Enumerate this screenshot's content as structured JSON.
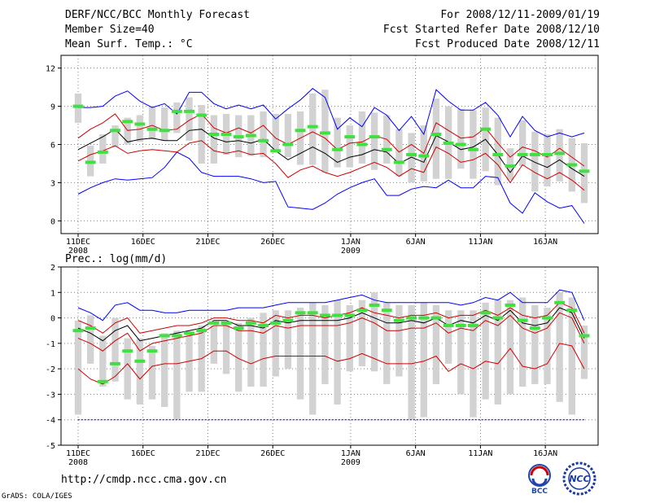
{
  "header": {
    "title": "DERF/NCC/BCC Monthly Forecast",
    "member_size": "Member Size=40",
    "variable": "Mean Surf. Temp.: °C",
    "period": "For 2008/12/11-2009/01/19",
    "started": "Fcst Started Refer Date 2008/12/10",
    "produced": "Fcst Produced Date 2008/12/11"
  },
  "footer": {
    "url": "http://cmdp.ncc.cma.gov.cn",
    "grads": "GrADS: COLA/IGES",
    "logo_bcc": "BCC",
    "logo_ncc": "NCC"
  },
  "colors": {
    "envelope": "#0000ff",
    "spread": "#d00000",
    "mean": "#000000",
    "box": "#d2d2d2",
    "median": "#40e040",
    "grid": "#808080"
  },
  "chart_data": [
    {
      "type": "box-line",
      "title": "Mean Surf. Temp.: °C",
      "days": 39,
      "ylim": [
        -1,
        13
      ],
      "yticks": [
        0,
        3,
        6,
        9,
        12
      ],
      "xticks": [
        {
          "day": 0,
          "label": "11DEC",
          "sub": "2008"
        },
        {
          "day": 5,
          "label": "16DEC",
          "sub": ""
        },
        {
          "day": 10,
          "label": "21DEC",
          "sub": ""
        },
        {
          "day": 15,
          "label": "26DEC",
          "sub": ""
        },
        {
          "day": 21,
          "label": "1JAN",
          "sub": "2009"
        },
        {
          "day": 26,
          "label": "6JAN",
          "sub": ""
        },
        {
          "day": 31,
          "label": "11JAN",
          "sub": ""
        },
        {
          "day": 36,
          "label": "16JAN",
          "sub": ""
        }
      ],
      "series": [
        {
          "name": "max",
          "color": "blue",
          "values": [
            8.9,
            8.9,
            9.0,
            9.8,
            10.2,
            9.4,
            8.9,
            9.2,
            8.4,
            10.1,
            10.1,
            9.2,
            8.8,
            9.1,
            8.8,
            9.1,
            8.0,
            8.8,
            9.5,
            10.4,
            9.7,
            7.2,
            8.1,
            7.4,
            8.9,
            8.3,
            7.1,
            8.2,
            6.8,
            10.3,
            9.4,
            8.7,
            8.7,
            9.3,
            8.3,
            6.6,
            8.2,
            7.1,
            6.6,
            6.9,
            6.6,
            6.9
          ]
        },
        {
          "name": "p75",
          "color": "red",
          "values": [
            6.5,
            7.2,
            7.7,
            8.4,
            7.1,
            7.2,
            7.5,
            7.1,
            7.2,
            7.9,
            8.4,
            7.3,
            6.9,
            7.3,
            6.9,
            7.5,
            6.5,
            6.0,
            6.5,
            7.0,
            6.5,
            5.6,
            6.1,
            6.2,
            6.7,
            6.4,
            5.4,
            6.0,
            5.3,
            7.7,
            7.1,
            6.5,
            6.6,
            7.3,
            6.1,
            5.0,
            5.8,
            5.5,
            5.0,
            5.7,
            5.0,
            4.3
          ]
        },
        {
          "name": "mean",
          "color": "black",
          "values": [
            5.6,
            6.1,
            6.6,
            7.2,
            6.2,
            6.4,
            6.5,
            6.3,
            6.3,
            7.1,
            7.2,
            6.5,
            6.2,
            6.3,
            6.1,
            6.4,
            5.5,
            4.8,
            5.3,
            5.8,
            5.3,
            4.6,
            5.0,
            5.2,
            5.6,
            5.4,
            4.5,
            5.0,
            4.6,
            6.7,
            6.2,
            5.6,
            5.8,
            6.4,
            5.2,
            3.8,
            5.1,
            4.6,
            4.2,
            4.8,
            4.1,
            3.5
          ]
        },
        {
          "name": "p25",
          "color": "red",
          "values": [
            4.7,
            5.2,
            5.5,
            5.9,
            5.3,
            5.5,
            5.6,
            5.5,
            5.4,
            6.1,
            6.3,
            5.5,
            5.3,
            5.5,
            5.2,
            5.3,
            4.5,
            3.4,
            4.0,
            4.3,
            3.8,
            3.5,
            3.8,
            4.2,
            4.6,
            4.2,
            3.5,
            4.1,
            3.8,
            5.8,
            5.3,
            4.6,
            4.8,
            5.3,
            4.4,
            3.0,
            4.4,
            3.8,
            3.3,
            3.8,
            3.2,
            2.4
          ]
        },
        {
          "name": "min",
          "color": "blue",
          "values": [
            2.1,
            2.6,
            3.0,
            3.3,
            3.2,
            3.3,
            3.4,
            4.2,
            5.4,
            4.9,
            3.8,
            3.5,
            3.5,
            3.5,
            3.3,
            3.0,
            3.1,
            1.1,
            1.0,
            0.9,
            1.4,
            2.1,
            2.6,
            3.0,
            3.3,
            2.0,
            2.0,
            2.5,
            2.7,
            2.6,
            3.2,
            2.6,
            2.6,
            3.5,
            3.4,
            1.4,
            0.6,
            2.2,
            1.5,
            1.0,
            1.2,
            -0.2
          ]
        }
      ],
      "boxes_lo": [
        7.7,
        3.5,
        4.5,
        5.8,
        6.0,
        6.2,
        6.4,
        6.3,
        6.9,
        6.3,
        4.5,
        4.5,
        5.2,
        5.0,
        5.1,
        5.0,
        5.6,
        5.0,
        4.4,
        4.4,
        3.8,
        4.2,
        4.2,
        4.5,
        4.0,
        4.5,
        3.5,
        3.0,
        3.1,
        3.3,
        3.3,
        4.1,
        3.3,
        3.9,
        2.8,
        3.2,
        4.3,
        2.3,
        2.7,
        3.1,
        2.3,
        1.4
      ],
      "boxes_hi": [
        10.0,
        5.9,
        6.8,
        7.5,
        8.1,
        8.3,
        9.0,
        8.9,
        9.3,
        9.7,
        9.1,
        8.3,
        8.4,
        8.3,
        8.3,
        8.6,
        8.4,
        8.4,
        8.6,
        10.0,
        10.3,
        8.1,
        7.5,
        8.6,
        8.5,
        8.3,
        7.2,
        6.9,
        7.5,
        9.6,
        9.0,
        8.8,
        8.7,
        8.9,
        8.1,
        5.7,
        7.9,
        7.0,
        6.8,
        7.2,
        6.5,
        6.1
      ],
      "medians": [
        9.0,
        4.6,
        5.4,
        7.1,
        7.8,
        7.6,
        7.2,
        7.1,
        8.6,
        8.6,
        8.3,
        6.8,
        6.8,
        6.6,
        6.7,
        6.3,
        5.5,
        6.0,
        7.1,
        7.4,
        6.9,
        5.6,
        6.6,
        6.0,
        6.6,
        5.6,
        4.6,
        5.2,
        5.1,
        6.8,
        6.1,
        6.0,
        5.6,
        7.2,
        5.2,
        4.3,
        5.2,
        5.2,
        5.2,
        5.3,
        4.4,
        3.9
      ]
    },
    {
      "type": "box-line",
      "title": "Prec.: log(mm/d)",
      "days": 39,
      "ylim": [
        -5,
        2
      ],
      "yticks": [
        -5,
        -4,
        -3,
        -2,
        -1,
        0,
        1,
        2
      ],
      "xticks": [
        {
          "day": 0,
          "label": "11DEC",
          "sub": "2008"
        },
        {
          "day": 5,
          "label": "16DEC",
          "sub": ""
        },
        {
          "day": 10,
          "label": "21DEC",
          "sub": ""
        },
        {
          "day": 15,
          "label": "26DEC",
          "sub": ""
        },
        {
          "day": 21,
          "label": "1JAN",
          "sub": "2009"
        },
        {
          "day": 26,
          "label": "6JAN",
          "sub": ""
        },
        {
          "day": 31,
          "label": "11JAN",
          "sub": ""
        },
        {
          "day": 36,
          "label": "16JAN",
          "sub": ""
        }
      ],
      "series": [
        {
          "name": "max",
          "color": "blue",
          "values": [
            0.4,
            0.2,
            -0.1,
            0.5,
            0.6,
            0.3,
            0.3,
            0.2,
            0.2,
            0.3,
            0.3,
            0.3,
            0.3,
            0.4,
            0.4,
            0.4,
            0.5,
            0.6,
            0.6,
            0.6,
            0.6,
            0.7,
            0.8,
            0.9,
            0.7,
            0.6,
            0.6,
            0.6,
            0.6,
            0.6,
            0.6,
            0.5,
            0.6,
            0.8,
            0.7,
            1.0,
            0.6,
            0.6,
            0.6,
            1.1,
            1.0,
            -0.1
          ]
        },
        {
          "name": "p75",
          "color": "red",
          "values": [
            -0.1,
            -0.3,
            -0.6,
            -0.2,
            0.0,
            -0.6,
            -0.5,
            -0.4,
            -0.3,
            -0.3,
            -0.2,
            0.0,
            0.0,
            -0.1,
            -0.1,
            -0.2,
            0.1,
            0.0,
            0.1,
            0.1,
            0.0,
            0.1,
            0.2,
            0.4,
            0.2,
            0.1,
            0.0,
            0.1,
            0.1,
            0.2,
            0.0,
            0.1,
            0.1,
            0.3,
            0.1,
            0.4,
            0.1,
            0.0,
            0.1,
            0.6,
            0.4,
            -0.6
          ]
        },
        {
          "name": "mean",
          "color": "black",
          "values": [
            -0.4,
            -0.6,
            -0.9,
            -0.5,
            -0.3,
            -0.9,
            -0.8,
            -0.7,
            -0.6,
            -0.5,
            -0.4,
            -0.1,
            -0.1,
            -0.3,
            -0.3,
            -0.4,
            -0.1,
            -0.2,
            -0.1,
            -0.1,
            -0.1,
            -0.1,
            0.0,
            0.2,
            0.0,
            -0.2,
            -0.2,
            -0.1,
            -0.2,
            0.0,
            -0.3,
            -0.1,
            -0.2,
            0.1,
            -0.1,
            0.3,
            -0.2,
            -0.3,
            -0.2,
            0.4,
            0.2,
            -0.8
          ]
        },
        {
          "name": "p25",
          "color": "red",
          "values": [
            -0.8,
            -1.0,
            -1.3,
            -0.9,
            -0.6,
            -1.3,
            -1.0,
            -0.9,
            -0.8,
            -0.7,
            -0.6,
            -0.3,
            -0.3,
            -0.5,
            -0.5,
            -0.6,
            -0.3,
            -0.4,
            -0.3,
            -0.3,
            -0.3,
            -0.3,
            -0.2,
            0.0,
            -0.2,
            -0.5,
            -0.5,
            -0.4,
            -0.4,
            -0.2,
            -0.6,
            -0.4,
            -0.5,
            -0.1,
            -0.3,
            0.1,
            -0.4,
            -0.6,
            -0.4,
            0.2,
            0.0,
            -1.0
          ]
        },
        {
          "name": "p10",
          "color": "red",
          "values": [
            -2.0,
            -2.4,
            -2.6,
            -2.3,
            -1.8,
            -2.4,
            -1.9,
            -1.8,
            -1.8,
            -1.7,
            -1.6,
            -1.3,
            -1.3,
            -1.6,
            -1.8,
            -1.6,
            -1.5,
            -1.5,
            -1.5,
            -1.5,
            -1.5,
            -1.7,
            -1.6,
            -1.4,
            -1.6,
            -1.8,
            -1.8,
            -1.8,
            -1.7,
            -1.5,
            -2.1,
            -1.8,
            -2.0,
            -1.7,
            -1.8,
            -1.2,
            -1.9,
            -2.0,
            -1.8,
            -1.0,
            -1.1,
            -2.0
          ]
        },
        {
          "name": "min",
          "color": "blue",
          "values": [
            -4.0,
            -4.0,
            -4.0,
            -4.0,
            -4.0,
            -4.0,
            -4.0,
            -4.0,
            -4.0,
            -4.0,
            -4.0,
            -4.0,
            -4.0,
            -4.0,
            -4.0,
            -4.0,
            -4.0,
            -4.0,
            -4.0,
            -4.0,
            -4.0,
            -4.0,
            -4.0,
            -4.0,
            -4.0,
            -4.0,
            -4.0,
            -4.0,
            -4.0,
            -4.0,
            -4.0,
            -4.0,
            -4.0,
            -4.0,
            -4.0,
            -4.0,
            -4.0,
            -4.0,
            -4.0,
            -4.0,
            -4.0,
            -4.0
          ]
        }
      ],
      "boxes_lo": [
        -3.8,
        -1.8,
        -2.7,
        -2.5,
        -3.2,
        -3.4,
        -3.2,
        -3.5,
        -4.0,
        -2.9,
        -2.9,
        -1.8,
        -2.2,
        -2.9,
        -2.7,
        -2.7,
        -2.3,
        -2.0,
        -3.2,
        -3.8,
        -2.6,
        -3.4,
        -2.1,
        -1.9,
        -2.1,
        -2.6,
        -2.3,
        -4.0,
        -3.9,
        -2.6,
        -1.8,
        -3.0,
        -3.9,
        -3.2,
        -3.4,
        -3.0,
        -2.7,
        -2.6,
        -2.6,
        -3.3,
        -3.8,
        -2.4
      ],
      "boxes_hi": [
        -0.1,
        0.1,
        -0.7,
        0.0,
        -0.8,
        -0.8,
        -1.1,
        -0.6,
        -0.5,
        -0.6,
        -0.3,
        -0.3,
        -0.2,
        -0.2,
        0.0,
        0.2,
        0.3,
        0.3,
        0.4,
        0.6,
        0.5,
        0.7,
        0.5,
        0.7,
        1.0,
        0.6,
        0.5,
        0.5,
        0.6,
        0.5,
        0.3,
        0.3,
        0.3,
        0.6,
        0.7,
        0.7,
        0.8,
        0.5,
        0.4,
        1.0,
        0.8,
        -0.3
      ],
      "medians": [
        -0.5,
        -0.4,
        -2.5,
        -1.8,
        -1.3,
        -1.7,
        -1.3,
        -0.7,
        -0.7,
        -0.6,
        -0.5,
        -0.2,
        -0.2,
        -0.4,
        -0.2,
        -0.3,
        -0.2,
        -0.1,
        0.2,
        0.2,
        0.1,
        0.1,
        0.1,
        0.3,
        0.5,
        0.3,
        -0.1,
        0.0,
        0.0,
        0.0,
        -0.3,
        -0.3,
        -0.3,
        0.2,
        0.0,
        0.5,
        -0.1,
        -0.4,
        0.0,
        0.6,
        0.3,
        -0.7
      ]
    }
  ]
}
